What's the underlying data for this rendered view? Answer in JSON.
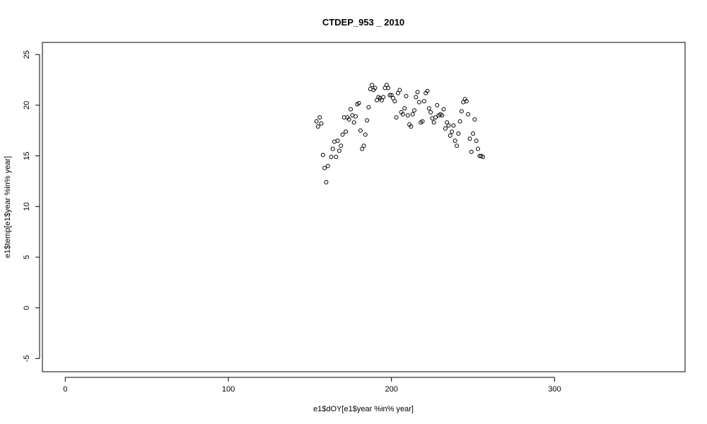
{
  "chart_data": {
    "type": "scatter",
    "title": "CTDEP_953 _ 2010",
    "xlabel": "e1$dOY[e1$year %in% year]",
    "ylabel": "e1$temp[e1$year %in% year]",
    "xlim": [
      -14,
      380
    ],
    "ylim": [
      -6.3,
      26.2
    ],
    "x_ticks": [
      0,
      100,
      200,
      300
    ],
    "y_ticks": [
      -5,
      0,
      5,
      10,
      15,
      20,
      25
    ],
    "grid": false,
    "legend": "none",
    "marker": "open-circle",
    "x": [
      154,
      155,
      156,
      157,
      158,
      159,
      160,
      161,
      163,
      164,
      165,
      166,
      167,
      168,
      169,
      170,
      171,
      172,
      173,
      174,
      175,
      176,
      177,
      178,
      179,
      180,
      181,
      182,
      183,
      184,
      185,
      186,
      187,
      188,
      189,
      190,
      191,
      192,
      193,
      194,
      195,
      196,
      197,
      198,
      199,
      200,
      201,
      202,
      203,
      204,
      205,
      206,
      207,
      208,
      209,
      210,
      211,
      212,
      213,
      214,
      215,
      216,
      217,
      218,
      219,
      220,
      221,
      222,
      223,
      224,
      225,
      226,
      227,
      228,
      229,
      230,
      231,
      232,
      233,
      234,
      235,
      236,
      237,
      238,
      239,
      240,
      241,
      242,
      243,
      244,
      245,
      246,
      247,
      248,
      249,
      250,
      251,
      252,
      253,
      254,
      255,
      256
    ],
    "y": [
      18.4,
      17.9,
      18.8,
      18.2,
      15.1,
      13.8,
      12.4,
      14.0,
      14.9,
      15.7,
      16.4,
      14.9,
      16.5,
      15.5,
      16.0,
      17.1,
      18.8,
      17.4,
      18.8,
      18.6,
      19.6,
      19.0,
      18.3,
      18.9,
      20.1,
      20.2,
      17.5,
      15.7,
      16.0,
      17.1,
      18.5,
      19.8,
      21.6,
      22.0,
      21.5,
      21.7,
      20.5,
      20.8,
      20.7,
      20.5,
      20.8,
      21.7,
      22.0,
      21.7,
      21.0,
      21.0,
      20.7,
      20.4,
      18.8,
      21.2,
      21.5,
      19.3,
      19.1,
      19.7,
      20.9,
      19.0,
      18.1,
      17.9,
      19.1,
      19.5,
      20.8,
      21.3,
      20.3,
      18.3,
      18.4,
      20.4,
      21.2,
      21.4,
      19.7,
      19.3,
      18.7,
      18.3,
      18.8,
      20.0,
      19.0,
      19.1,
      19.0,
      19.6,
      17.7,
      18.3,
      18.0,
      17.0,
      17.4,
      18.0,
      16.5,
      16.0,
      17.2,
      18.4,
      19.4,
      20.3,
      20.6,
      20.4,
      19.1,
      16.7,
      15.4,
      17.2,
      18.6,
      16.5,
      15.7,
      15.0,
      15.0,
      14.9
    ]
  }
}
